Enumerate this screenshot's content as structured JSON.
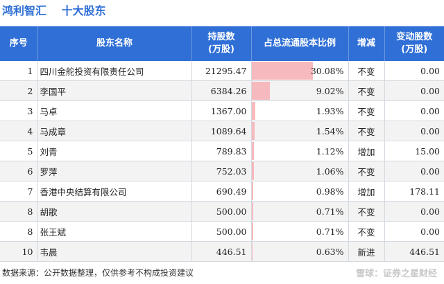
{
  "header": {
    "company": "鸿利智汇",
    "section": "十大股东"
  },
  "table": {
    "headers": [
      "序号",
      "股东名称",
      "持股数\n(万股)",
      "占总流通股本比例",
      "增减",
      "变动股数\n(万股)"
    ],
    "rows": [
      {
        "rank": "1",
        "name": "四川金舵投资有限责任公司",
        "shares": "21295.47",
        "ratio": "30.08%",
        "ratio_value": 30.08,
        "change": "不变",
        "change_up": false,
        "delta": "0.00"
      },
      {
        "rank": "2",
        "name": "李国平",
        "shares": "6384.26",
        "ratio": "9.02%",
        "ratio_value": 9.02,
        "change": "不变",
        "change_up": false,
        "delta": "0.00"
      },
      {
        "rank": "3",
        "name": "马卓",
        "shares": "1367.00",
        "ratio": "1.93%",
        "ratio_value": 1.93,
        "change": "不变",
        "change_up": false,
        "delta": "0.00"
      },
      {
        "rank": "4",
        "name": "马成章",
        "shares": "1089.64",
        "ratio": "1.54%",
        "ratio_value": 1.54,
        "change": "不变",
        "change_up": false,
        "delta": "0.00"
      },
      {
        "rank": "5",
        "name": "刘青",
        "shares": "789.83",
        "ratio": "1.12%",
        "ratio_value": 1.12,
        "change": "增加",
        "change_up": true,
        "delta": "15.00"
      },
      {
        "rank": "6",
        "name": "罗萍",
        "shares": "752.03",
        "ratio": "1.06%",
        "ratio_value": 1.06,
        "change": "不变",
        "change_up": false,
        "delta": "0.00"
      },
      {
        "rank": "7",
        "name": "香港中央结算有限公司",
        "shares": "690.49",
        "ratio": "0.98%",
        "ratio_value": 0.98,
        "change": "增加",
        "change_up": true,
        "delta": "178.11"
      },
      {
        "rank": "8",
        "name": "胡歌",
        "shares": "500.00",
        "ratio": "0.71%",
        "ratio_value": 0.71,
        "change": "不变",
        "change_up": false,
        "delta": "0.00"
      },
      {
        "rank": "8",
        "name": "张王斌",
        "shares": "500.00",
        "ratio": "0.71%",
        "ratio_value": 0.71,
        "change": "不变",
        "change_up": false,
        "delta": "0.00"
      },
      {
        "rank": "10",
        "name": "韦晨",
        "shares": "446.51",
        "ratio": "0.63%",
        "ratio_value": 0.63,
        "change": "新进",
        "change_up": true,
        "delta": "446.51"
      }
    ]
  },
  "footer": {
    "source": "数据来源：公开数据整理，仅供参考不构成投资建议"
  },
  "watermark": {
    "text": "雪球：证券之星财经"
  },
  "colors": {
    "header_bg": "#2f6fd6",
    "bar": "#f6b9bd",
    "increase": "#e02020"
  }
}
